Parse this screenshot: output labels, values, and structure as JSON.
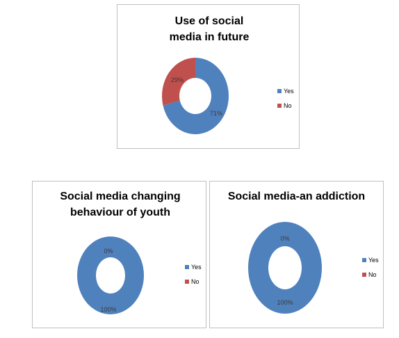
{
  "colors": {
    "yes": "#4F81BD",
    "no": "#C0504D"
  },
  "chart_data": [
    {
      "type": "pie",
      "donut": true,
      "title": "Use of social media in future",
      "categories": [
        "Yes",
        "No"
      ],
      "values": [
        71,
        29
      ],
      "data_labels": [
        "71%",
        "29%"
      ],
      "legend": [
        "Yes",
        "No"
      ],
      "legend_position": "right"
    },
    {
      "type": "pie",
      "donut": true,
      "title": "Social media changing behaviour of youth",
      "categories": [
        "Yes",
        "No"
      ],
      "values": [
        100,
        0
      ],
      "data_labels": [
        "100%",
        "0%"
      ],
      "legend": [
        "Yes",
        "No"
      ],
      "legend_position": "right"
    },
    {
      "type": "pie",
      "donut": true,
      "title": "Social media-an addiction",
      "categories": [
        "Yes",
        "No"
      ],
      "values": [
        100,
        0
      ],
      "data_labels": [
        "100%",
        "0%"
      ],
      "legend": [
        "Yes",
        "No"
      ],
      "legend_position": "right"
    }
  ]
}
